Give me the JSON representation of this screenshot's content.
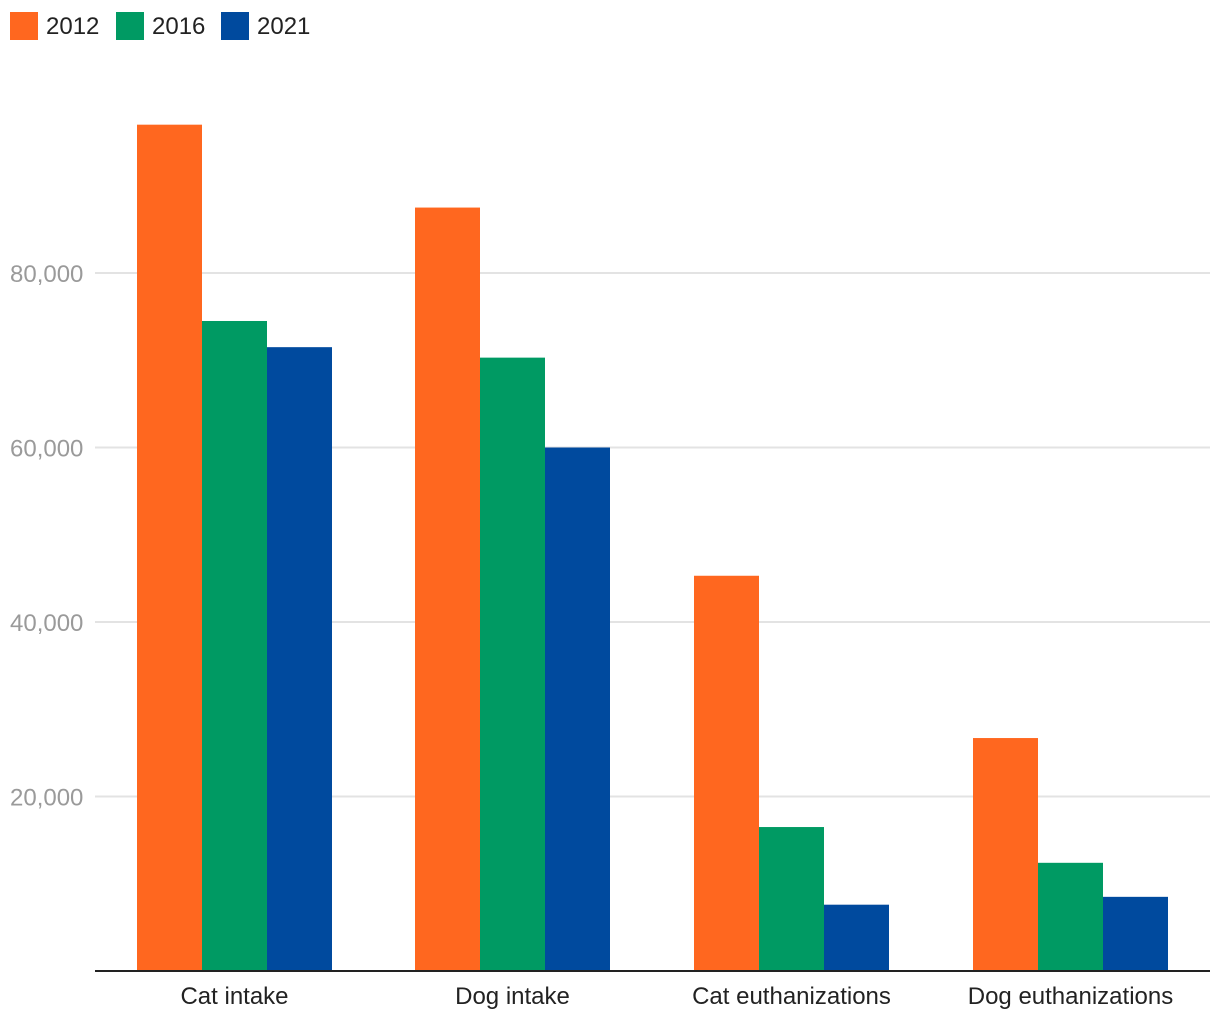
{
  "chart_data": {
    "type": "bar",
    "categories": [
      "Cat intake",
      "Dog intake",
      "Cat euthanizations",
      "Dog euthanizations"
    ],
    "series": [
      {
        "name": "2012",
        "color": "#ff671f",
        "values": [
          97000,
          87500,
          45300,
          26700
        ]
      },
      {
        "name": "2016",
        "color": "#009a63",
        "values": [
          74500,
          70300,
          16500,
          12400
        ]
      },
      {
        "name": "2021",
        "color": "#004a9e",
        "values": [
          71500,
          60000,
          7600,
          8500
        ]
      }
    ],
    "yticks": [
      "20,000",
      "40,000",
      "60,000",
      "80,000"
    ],
    "ytick_values": [
      20000,
      40000,
      60000,
      80000
    ],
    "ylim": [
      0,
      100000
    ],
    "grid": true,
    "legend_position": "top-left"
  }
}
